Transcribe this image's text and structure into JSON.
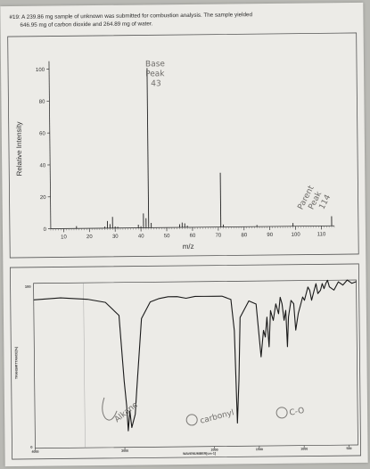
{
  "question": {
    "line1": "#19: A 239.86 mg sample of unknown was submitted for combustion analysis.  The sample yielded",
    "line2": "646.95 mg of carbon dioxide and 264.89 mg of water."
  },
  "mass_spectrum": {
    "ylabel": "Relative Intensity",
    "xlabel": "m/z",
    "y_ticks": [
      "0",
      "20",
      "40",
      "60",
      "80",
      "100"
    ],
    "x_ticks": [
      "10",
      "20",
      "30",
      "40",
      "50",
      "60",
      "70",
      "80",
      "90",
      "100",
      "110"
    ],
    "annotations": {
      "base_peak_1": "Base",
      "base_peak_2": "Peak",
      "base_peak_3": "43",
      "parent_1": "Parent",
      "parent_2": "Peak",
      "parent_3": "114"
    }
  },
  "ir_spectrum": {
    "ylabel": "TRANSMITTANCE[%]",
    "xlabel": "WAVENUMBER[cm-1]",
    "y_top": "100",
    "y_bottom": "0",
    "x_ticks": [
      "4000",
      "3000",
      "2000",
      "1500",
      "1000",
      "500"
    ],
    "annotations": {
      "alkane": "Alkane",
      "carbonyl": "carbonyl",
      "c_o": "C-O"
    }
  },
  "chart_data": [
    {
      "type": "bar",
      "xlabel": "m/z",
      "ylabel": "Relative Intensity",
      "xlim": [
        5,
        115
      ],
      "ylim": [
        0,
        105
      ],
      "x": [
        15,
        26,
        27,
        28,
        29,
        30,
        31,
        39,
        40,
        41,
        42,
        43,
        44,
        55,
        56,
        57,
        58,
        71,
        72,
        85,
        99,
        114
      ],
      "values": [
        1.5,
        1,
        4.5,
        2.5,
        7,
        1,
        0.8,
        2,
        1,
        9,
        6,
        100,
        3,
        2,
        3,
        2.5,
        1,
        34,
        1.5,
        1,
        2,
        6
      ]
    },
    {
      "type": "line",
      "xlabel": "WAVENUMBER[cm-1]",
      "ylabel": "TRANSMITTANCE[%]",
      "xlim": [
        4000,
        400
      ],
      "ylim": [
        0,
        100
      ],
      "x": [
        4000,
        3700,
        3400,
        3200,
        3050,
        3000,
        2975,
        2960,
        2940,
        2920,
        2880,
        2860,
        2800,
        2700,
        2600,
        2500,
        2400,
        2300,
        2200,
        2100,
        2000,
        1900,
        1800,
        1765,
        1742,
        1720,
        1700,
        1600,
        1520,
        1470,
        1440,
        1420,
        1400,
        1380,
        1360,
        1330,
        1300,
        1270,
        1250,
        1230,
        1210,
        1190,
        1175,
        1160,
        1130,
        1100,
        1080,
        1050,
        1020,
        1000,
        980,
        960,
        940,
        920,
        900,
        870,
        850,
        830,
        800,
        780,
        760,
        740,
        720,
        700,
        650,
        600,
        550,
        500,
        450,
        400
      ],
      "values": [
        90,
        91,
        90,
        88,
        80,
        40,
        25,
        10,
        22,
        12,
        20,
        35,
        78,
        88,
        90,
        91,
        91,
        90,
        91,
        91,
        91,
        91,
        89,
        70,
        14,
        40,
        78,
        88,
        86,
        54,
        70,
        66,
        78,
        60,
        82,
        76,
        86,
        80,
        90,
        86,
        76,
        82,
        60,
        78,
        88,
        86,
        70,
        80,
        86,
        90,
        88,
        92,
        96,
        94,
        88,
        94,
        98,
        92,
        94,
        98,
        95,
        98,
        100,
        96,
        94,
        99,
        97,
        100,
        98,
        99
      ]
    }
  ]
}
